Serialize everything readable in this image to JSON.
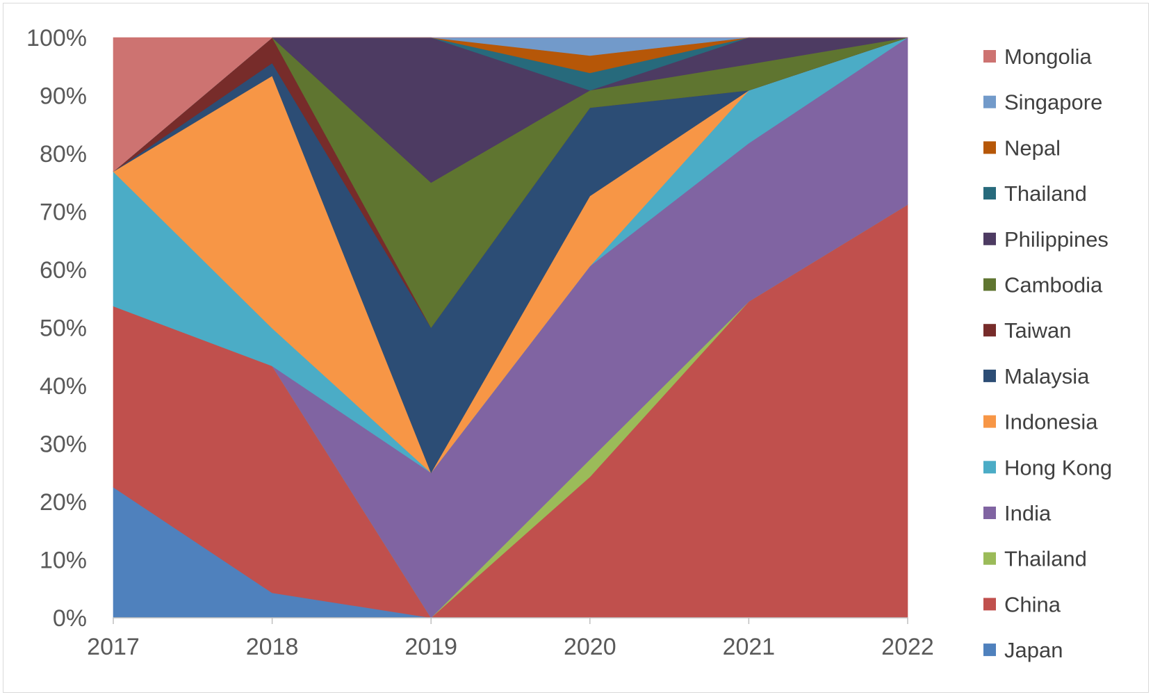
{
  "chart_data": {
    "type": "area",
    "stacked": true,
    "normalized": true,
    "title": "",
    "xlabel": "",
    "ylabel": "",
    "x": [
      "2017",
      "2018",
      "2019",
      "2020",
      "2021",
      "2022"
    ],
    "ylim": [
      0,
      100
    ],
    "y_ticks": [
      "0%",
      "10%",
      "20%",
      "30%",
      "40%",
      "50%",
      "60%",
      "70%",
      "80%",
      "90%",
      "100%"
    ],
    "grid": false,
    "legend_position": "right",
    "series": [
      {
        "name": "Japan",
        "color": "#4f81bd",
        "values": [
          22.5,
          4.3,
          0,
          0,
          0,
          0
        ]
      },
      {
        "name": "China",
        "color": "#c0504d",
        "values": [
          31.2,
          39.1,
          0,
          24.3,
          54.5,
          71.2
        ]
      },
      {
        "name": "Thailand",
        "color": "#9bbb59",
        "values": [
          0,
          0,
          0,
          3.0,
          0,
          0
        ]
      },
      {
        "name": "India",
        "color": "#8064a2",
        "values": [
          0,
          0,
          25.0,
          33.3,
          27.3,
          28.8
        ]
      },
      {
        "name": "Hong Kong",
        "color": "#4bacc6",
        "values": [
          23.2,
          6.5,
          0,
          0,
          9.1,
          0
        ]
      },
      {
        "name": "Indonesia",
        "color": "#f79646",
        "values": [
          0,
          43.5,
          0,
          12.1,
          0,
          0
        ]
      },
      {
        "name": "Malaysia",
        "color": "#2c4d75",
        "values": [
          0,
          2.2,
          25.0,
          15.2,
          0,
          0
        ]
      },
      {
        "name": "Taiwan",
        "color": "#772c2a",
        "values": [
          0,
          4.4,
          0,
          0,
          0,
          0
        ]
      },
      {
        "name": "Cambodia",
        "color": "#5f7530",
        "values": [
          0,
          0,
          25.0,
          3.0,
          4.5,
          0
        ]
      },
      {
        "name": "Philippines",
        "color": "#4d3b62",
        "values": [
          0,
          0,
          25.0,
          0,
          4.6,
          0
        ]
      },
      {
        "name": "Thailand",
        "color": "#276a7c",
        "values": [
          0,
          0,
          0,
          3.0,
          0,
          0
        ]
      },
      {
        "name": "Nepal",
        "color": "#b65708",
        "values": [
          0,
          0,
          0,
          3.0,
          0,
          0
        ]
      },
      {
        "name": "Singapore",
        "color": "#729aca",
        "values": [
          0,
          0,
          0,
          3.1,
          0,
          0
        ]
      },
      {
        "name": "Mongolia",
        "color": "#cd7371",
        "values": [
          23.1,
          0,
          0,
          0,
          0,
          0
        ]
      }
    ]
  }
}
